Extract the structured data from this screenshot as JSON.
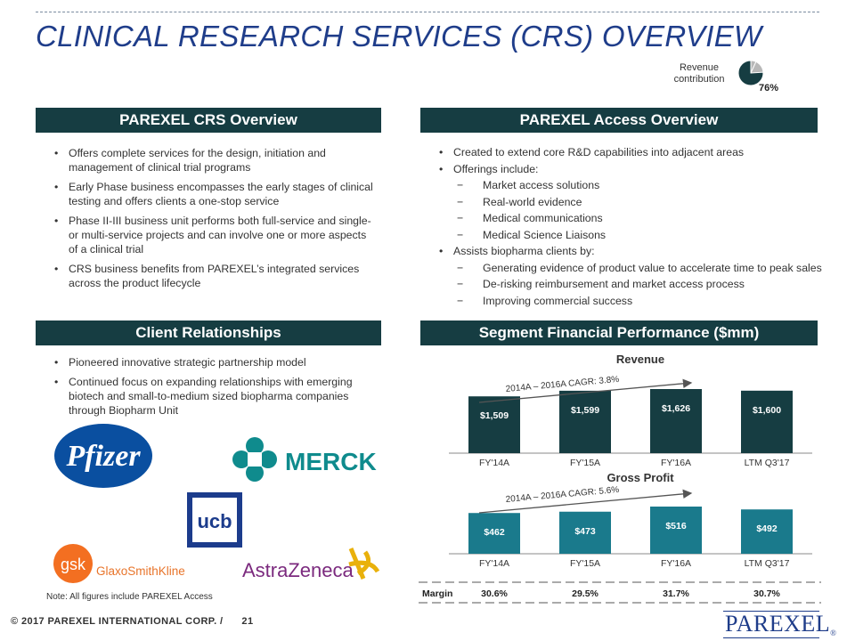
{
  "header": {
    "title": "CLINICAL RESEARCH SERVICES (CRS) OVERVIEW",
    "revenue_contribution_label": "Revenue contribution",
    "revenue_contribution_value": "76%",
    "revenue_contribution_fraction": 0.76
  },
  "crs_overview": {
    "title": "PAREXEL CRS Overview",
    "bullets": [
      "Offers complete services for the design, initiation and management of clinical trial programs",
      "Early Phase business encompasses the early stages of clinical testing and offers clients a one-stop service",
      "Phase II-III business unit performs both full-service and single- or multi-service projects and can involve one or more aspects of a clinical trial",
      "CRS business benefits from PAREXEL’s integrated services across the product lifecycle"
    ]
  },
  "access_overview": {
    "title": "PAREXEL Access Overview",
    "items": [
      {
        "type": "bullet",
        "text": "Created to extend core R&D capabilities into adjacent areas"
      },
      {
        "type": "bullet",
        "text": "Offerings include:"
      },
      {
        "type": "dash",
        "text": "Market access solutions"
      },
      {
        "type": "dash",
        "text": "Real-world evidence"
      },
      {
        "type": "dash",
        "text": "Medical communications"
      },
      {
        "type": "dash",
        "text": "Medical Science Liaisons"
      },
      {
        "type": "bullet",
        "text": "Assists biopharma clients by:"
      },
      {
        "type": "dash",
        "text": "Generating evidence of product value to accelerate time to peak sales"
      },
      {
        "type": "dash",
        "text": "De-risking reimbursement and market access process"
      },
      {
        "type": "dash",
        "text": "Improving commercial success"
      }
    ]
  },
  "client_relationships": {
    "title": "Client Relationships",
    "bullets": [
      "Pioneered innovative strategic partnership model",
      "Continued focus on expanding relationships with emerging biotech and small-to-medium sized biopharma companies through Biopharm Unit"
    ],
    "logos": {
      "pfizer": "Pfizer",
      "merck": "MERCK",
      "ucb": "ucb",
      "gsk": "gsk",
      "gsk_full": "GlaxoSmithKline",
      "astrazeneca": "AstraZeneca"
    }
  },
  "segment": {
    "title": "Segment Financial Performance ($mm)",
    "margin_label": "Margin"
  },
  "chart_data": [
    {
      "type": "bar",
      "title": "Revenue",
      "categories": [
        "FY'14A",
        "FY'15A",
        "FY'16A",
        "LTM Q3'17"
      ],
      "values": [
        1509,
        1599,
        1626,
        1600
      ],
      "data_labels": [
        "$1,509",
        "$1,599",
        "$1,626",
        "$1,600"
      ],
      "annotation": "2014A – 2016A CAGR: 3.8%",
      "bar_color": "#163d42"
    },
    {
      "type": "bar",
      "title": "Gross Profit",
      "categories": [
        "FY'14A",
        "FY'15A",
        "FY'16A",
        "LTM Q3'17"
      ],
      "values": [
        462,
        473,
        516,
        492
      ],
      "data_labels": [
        "$462",
        "$473",
        "$516",
        "$492"
      ],
      "annotation": "2014A – 2016A CAGR: 5.6%",
      "margins": [
        "30.6%",
        "29.5%",
        "31.7%",
        "30.7%"
      ],
      "bar_color": "#1a7a8c"
    }
  ],
  "note": "Note: All figures include PAREXEL Access",
  "footer": {
    "copyright": "© 2017 PAREXEL INTERNATIONAL CORP. /",
    "page_number": "21",
    "brand": "PAREXEL",
    "brand_mark": "®"
  }
}
